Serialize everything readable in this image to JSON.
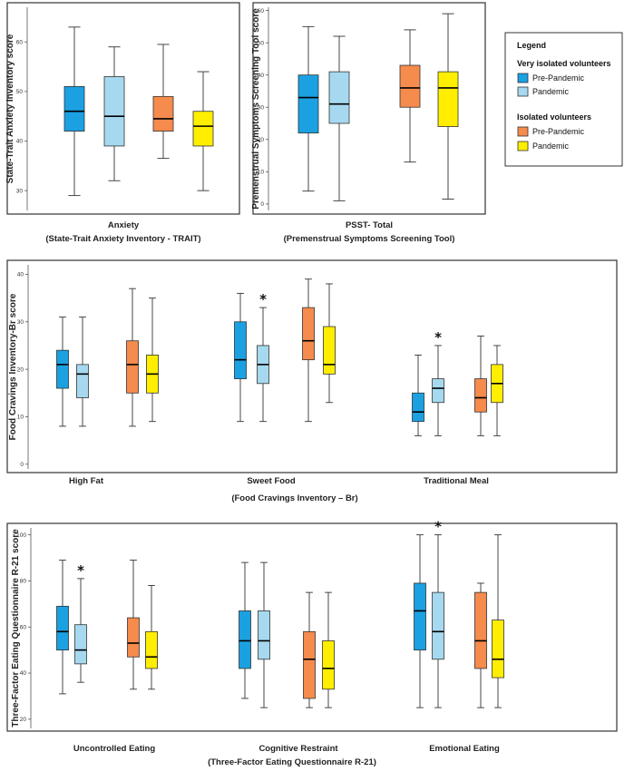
{
  "colors": {
    "very_pre": "#1ba1e2",
    "very_pan": "#a6d9ef",
    "iso_pre": "#f58b4c",
    "iso_pan": "#ffee00",
    "stroke": "#333333"
  },
  "legend": {
    "title": "Legend",
    "group1": "Very isolated volunteers",
    "group2": "Isolated volunteers",
    "items": [
      "Pre-Pandemic",
      "Pandemic",
      "Pre-Pandemic",
      "Pandemic"
    ]
  },
  "chart_data": [
    {
      "type": "box",
      "ylabel": "State-Trait Anxiety Inventory score",
      "xlabel": [
        "Anxiety",
        "(State-Trait Anxiety Inventory - TRAIT)"
      ],
      "ylim": [
        26,
        67
      ],
      "yticks": [
        30,
        40,
        50,
        60
      ],
      "categories": [
        ""
      ],
      "series": [
        {
          "group": "very",
          "period": "pre",
          "values": [
            {
              "min": 29,
              "q1": 42,
              "median": 46,
              "q3": 51,
              "max": 63
            }
          ]
        },
        {
          "group": "very",
          "period": "pan",
          "values": [
            {
              "min": 32,
              "q1": 39,
              "median": 45,
              "q3": 53,
              "max": 59
            }
          ]
        },
        {
          "group": "iso",
          "period": "pre",
          "values": [
            {
              "min": 36.5,
              "q1": 42,
              "median": 44.5,
              "q3": 49,
              "max": 59.5
            }
          ]
        },
        {
          "group": "iso",
          "period": "pan",
          "values": [
            {
              "min": 30,
              "q1": 39,
              "median": 43,
              "q3": 46,
              "max": 54
            }
          ]
        }
      ],
      "stars": []
    },
    {
      "type": "box",
      "ylabel": "Premenstrual Symptoms Screening Tool score",
      "xlabel": [
        "PSST- Total",
        "(Premenstrual Symptoms Screening Tool)"
      ],
      "ylim": [
        -2,
        61
      ],
      "yticks": [
        0,
        10,
        20,
        30,
        40,
        50,
        60
      ],
      "categories": [
        ""
      ],
      "series": [
        {
          "group": "very",
          "period": "pre",
          "values": [
            {
              "min": 4,
              "q1": 22,
              "median": 33,
              "q3": 40,
              "max": 55
            }
          ]
        },
        {
          "group": "very",
          "period": "pan",
          "values": [
            {
              "min": 1,
              "q1": 25,
              "median": 31,
              "q3": 41,
              "max": 52
            }
          ]
        },
        {
          "group": "iso",
          "period": "pre",
          "values": [
            {
              "min": 13,
              "q1": 30,
              "median": 36,
              "q3": 43,
              "max": 54
            }
          ]
        },
        {
          "group": "iso",
          "period": "pan",
          "values": [
            {
              "min": 1.5,
              "q1": 24,
              "median": 36,
              "q3": 41,
              "max": 59
            }
          ]
        }
      ],
      "stars": []
    },
    {
      "type": "box",
      "ylabel": "Food Cravings Inventory-Br score",
      "xlabel": [
        "(Food Cravings Inventory – Br)"
      ],
      "ylim": [
        -1,
        42
      ],
      "yticks": [
        0,
        10,
        20,
        30,
        40
      ],
      "categories": [
        "High Fat",
        "Sweet Food",
        "Traditional Meal"
      ],
      "series": [
        {
          "group": "very",
          "period": "pre",
          "values": [
            {
              "min": 8,
              "q1": 16,
              "median": 21,
              "q3": 24,
              "max": 31
            },
            {
              "min": 9,
              "q1": 18,
              "median": 22,
              "q3": 30,
              "max": 36
            },
            {
              "min": 6,
              "q1": 9,
              "median": 11,
              "q3": 15,
              "max": 23
            }
          ]
        },
        {
          "group": "very",
          "period": "pan",
          "values": [
            {
              "min": 8,
              "q1": 14,
              "median": 19,
              "q3": 21,
              "max": 31
            },
            {
              "min": 9,
              "q1": 17,
              "median": 21,
              "q3": 25,
              "max": 33
            },
            {
              "min": 6,
              "q1": 13,
              "median": 16,
              "q3": 18,
              "max": 25
            }
          ]
        },
        {
          "group": "iso",
          "period": "pre",
          "values": [
            {
              "min": 8,
              "q1": 15,
              "median": 21,
              "q3": 26,
              "max": 37
            },
            {
              "min": 9,
              "q1": 22,
              "median": 26,
              "q3": 33,
              "max": 39
            },
            {
              "min": 6,
              "q1": 11,
              "median": 14,
              "q3": 18,
              "max": 27
            }
          ]
        },
        {
          "group": "iso",
          "period": "pan",
          "values": [
            {
              "min": 9,
              "q1": 15,
              "median": 19,
              "q3": 23,
              "max": 35
            },
            {
              "min": 13,
              "q1": 19,
              "median": 21,
              "q3": 29,
              "max": 38
            },
            {
              "min": 6,
              "q1": 13,
              "median": 17,
              "q3": 21,
              "max": 25
            }
          ]
        }
      ],
      "stars": [
        {
          "category": 1,
          "series": 1,
          "text": "*"
        },
        {
          "category": 2,
          "series": 1,
          "text": "*"
        }
      ]
    },
    {
      "type": "box",
      "ylabel": "Three-Factor Eating Questionnaire R-21 score",
      "xlabel": [
        "(Three-Factor Eating Questionnaire R-21)"
      ],
      "ylim": [
        16,
        103
      ],
      "yticks": [
        20,
        40,
        60,
        80,
        100
      ],
      "categories": [
        "Uncontrolled Eating",
        "Cognitive Restraint",
        "Emotional Eating"
      ],
      "series": [
        {
          "group": "very",
          "period": "pre",
          "values": [
            {
              "min": 31,
              "q1": 50,
              "median": 58,
              "q3": 69,
              "max": 89
            },
            {
              "min": 29,
              "q1": 42,
              "median": 54,
              "q3": 67,
              "max": 88
            },
            {
              "min": 25,
              "q1": 50,
              "median": 67,
              "q3": 79,
              "max": 100
            }
          ]
        },
        {
          "group": "very",
          "period": "pan",
          "values": [
            {
              "min": 36,
              "q1": 44,
              "median": 50,
              "q3": 61,
              "max": 81
            },
            {
              "min": 25,
              "q1": 46,
              "median": 54,
              "q3": 67,
              "max": 88
            },
            {
              "min": 25,
              "q1": 46,
              "median": 58,
              "q3": 75,
              "max": 100
            }
          ]
        },
        {
          "group": "iso",
          "period": "pre",
          "values": [
            {
              "min": 33,
              "q1": 47,
              "median": 53,
              "q3": 64,
              "max": 89
            },
            {
              "min": 25,
              "q1": 29,
              "median": 46,
              "q3": 58,
              "max": 75
            },
            {
              "min": 25,
              "q1": 42,
              "median": 54,
              "q3": 75,
              "max": 79
            }
          ]
        },
        {
          "group": "iso",
          "period": "pan",
          "values": [
            {
              "min": 33,
              "q1": 42,
              "median": 47,
              "q3": 58,
              "max": 78
            },
            {
              "min": 25,
              "q1": 33,
              "median": 42,
              "q3": 54,
              "max": 75
            },
            {
              "min": 25,
              "q1": 38,
              "median": 46,
              "q3": 63,
              "max": 100
            }
          ]
        }
      ],
      "stars": [
        {
          "category": 0,
          "series": 1,
          "text": "*"
        },
        {
          "category": 2,
          "series": 1,
          "text": "*"
        }
      ]
    }
  ]
}
